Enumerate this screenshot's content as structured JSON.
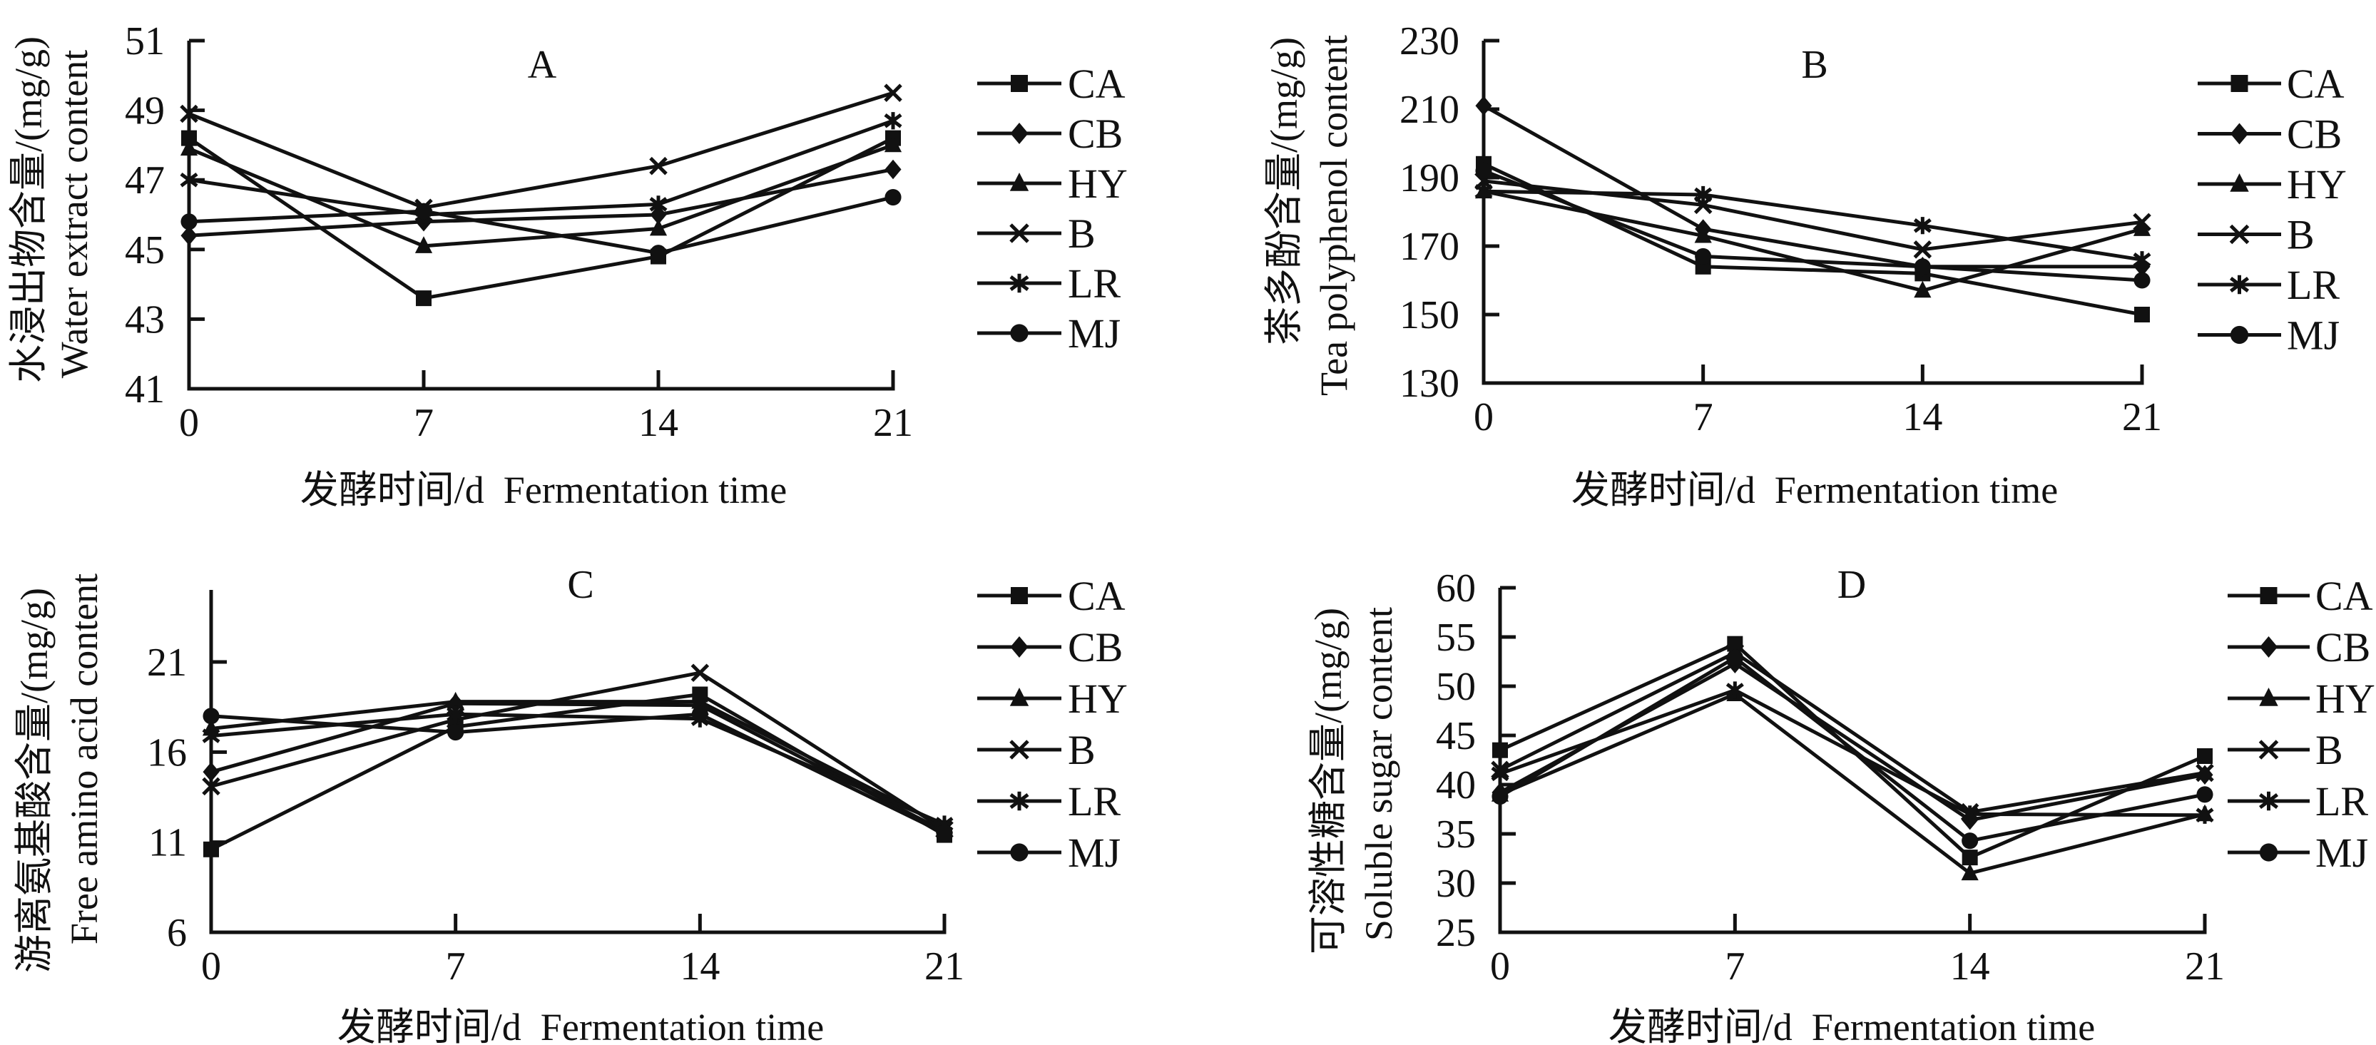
{
  "figure": {
    "background": "#ffffff",
    "ink_color": "#111111"
  },
  "chart_data": [
    {
      "panel": "A",
      "type": "line",
      "title": "A",
      "ylabel_cn": "水浸出物含量/(mg/g)",
      "ylabel_en": "Water extract content",
      "xlabel": "发酵时间/d  Fermentation time",
      "x": [
        0,
        7,
        14,
        21
      ],
      "xticks": [
        "0",
        "7",
        "14",
        "21"
      ],
      "xlim": [
        0,
        21
      ],
      "ylim": [
        41,
        51
      ],
      "yticks": [
        "41",
        "43",
        "45",
        "47",
        "49",
        "51"
      ],
      "grid": false,
      "legend_position": "right",
      "series": [
        {
          "name": "CA",
          "marker": "square",
          "values": [
            48.2,
            43.6,
            44.8,
            48.2
          ]
        },
        {
          "name": "CB",
          "marker": "diamond",
          "values": [
            45.4,
            45.8,
            46.0,
            47.3
          ]
        },
        {
          "name": "HY",
          "marker": "triangle",
          "values": [
            47.9,
            45.1,
            45.6,
            48.0
          ]
        },
        {
          "name": "B",
          "marker": "x",
          "values": [
            48.9,
            46.2,
            47.4,
            49.5
          ]
        },
        {
          "name": "LR",
          "marker": "asterisk",
          "values": [
            47.0,
            46.0,
            46.3,
            48.7
          ]
        },
        {
          "name": "MJ",
          "marker": "circle",
          "values": [
            45.8,
            46.1,
            44.9,
            46.5
          ]
        }
      ]
    },
    {
      "panel": "B",
      "type": "line",
      "title": "B",
      "ylabel_cn": "茶多酚含量/(mg/g)",
      "ylabel_en": "Tea polyphenol content",
      "xlabel": "发酵时间/d  Fermentation time",
      "x": [
        0,
        7,
        14,
        21
      ],
      "xticks": [
        "0",
        "7",
        "14",
        "21"
      ],
      "xlim": [
        0,
        21
      ],
      "ylim": [
        130,
        230
      ],
      "yticks": [
        "130",
        "150",
        "170",
        "190",
        "210",
        "230"
      ],
      "grid": false,
      "legend_position": "right",
      "series": [
        {
          "name": "CA",
          "marker": "square",
          "values": [
            194,
            164,
            162,
            150
          ]
        },
        {
          "name": "CB",
          "marker": "diamond",
          "values": [
            211,
            175,
            164,
            164
          ]
        },
        {
          "name": "HY",
          "marker": "triangle",
          "values": [
            186,
            173,
            157,
            175
          ]
        },
        {
          "name": "B",
          "marker": "x",
          "values": [
            189,
            182,
            169,
            177
          ]
        },
        {
          "name": "LR",
          "marker": "asterisk",
          "values": [
            186,
            185,
            176,
            166
          ]
        },
        {
          "name": "MJ",
          "marker": "circle",
          "values": [
            192,
            167,
            164,
            160
          ]
        }
      ]
    },
    {
      "panel": "C",
      "type": "line",
      "title": "C",
      "ylabel_cn": "游离氨基酸含量/(mg/g)",
      "ylabel_en": "Free amino acid content",
      "xlabel": "发酵时间/d  Fermentation time",
      "x": [
        0,
        7,
        14,
        21
      ],
      "xticks": [
        "0",
        "7",
        "14",
        "21"
      ],
      "xlim": [
        0,
        21
      ],
      "ylim": [
        6,
        25
      ],
      "yticks": [
        "6",
        "11",
        "16",
        "21"
      ],
      "grid": false,
      "legend_position": "right",
      "series": [
        {
          "name": "CA",
          "marker": "square",
          "values": [
            10.6,
            17.4,
            19.2,
            11.4
          ]
        },
        {
          "name": "CB",
          "marker": "diamond",
          "values": [
            14.9,
            18.7,
            18.6,
            11.6
          ]
        },
        {
          "name": "HY",
          "marker": "triangle",
          "values": [
            17.3,
            18.8,
            18.8,
            11.9
          ]
        },
        {
          "name": "B",
          "marker": "x",
          "values": [
            14.1,
            17.8,
            20.4,
            11.7
          ]
        },
        {
          "name": "LR",
          "marker": "asterisk",
          "values": [
            16.9,
            18.1,
            17.85,
            12.0
          ]
        },
        {
          "name": "MJ",
          "marker": "circle",
          "values": [
            18.0,
            17.1,
            18.1,
            11.5
          ]
        }
      ]
    },
    {
      "panel": "D",
      "type": "line",
      "title": "D",
      "ylabel_cn": "可溶性糖含量/(mg/g)",
      "ylabel_en": "Soluble sugar content",
      "xlabel": "发酵时间/d  Fermentation time",
      "x": [
        0,
        7,
        14,
        21
      ],
      "xticks": [
        "0",
        "7",
        "14",
        "21"
      ],
      "xlim": [
        0,
        21
      ],
      "ylim": [
        25,
        60
      ],
      "yticks": [
        "25",
        "30",
        "35",
        "40",
        "45",
        "50",
        "55",
        "60"
      ],
      "grid": false,
      "legend_position": "right",
      "series": [
        {
          "name": "CA",
          "marker": "square",
          "values": [
            43.5,
            54.3,
            32.6,
            42.9
          ]
        },
        {
          "name": "CB",
          "marker": "diamond",
          "values": [
            39.2,
            52.3,
            36.4,
            41.0
          ]
        },
        {
          "name": "HY",
          "marker": "triangle",
          "values": [
            39.0,
            49.2,
            31.0,
            37.0
          ]
        },
        {
          "name": "B",
          "marker": "x",
          "values": [
            41.5,
            53.4,
            37.2,
            41.2
          ]
        },
        {
          "name": "LR",
          "marker": "asterisk",
          "values": [
            41.1,
            49.6,
            37.0,
            36.9
          ]
        },
        {
          "name": "MJ",
          "marker": "circle",
          "values": [
            38.8,
            52.9,
            34.3,
            39.0
          ]
        }
      ]
    }
  ]
}
